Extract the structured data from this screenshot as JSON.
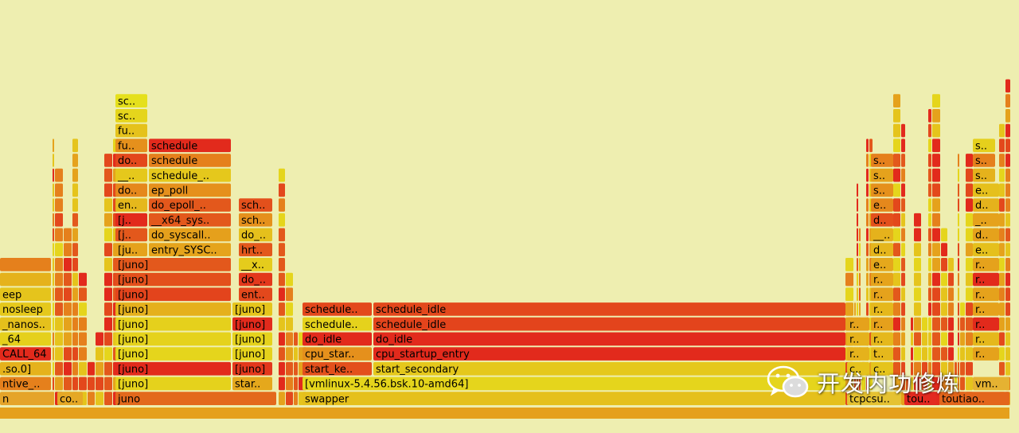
{
  "chart_data": {
    "type": "flamegraph",
    "title": "",
    "frames": [
      {
        "label": "juno",
        "x0": 145,
        "x1": 347,
        "depth": 1,
        "color": "#e3691c"
      },
      {
        "label": "swapper",
        "x0": 380,
        "x1": 1062,
        "depth": 1,
        "color": "#e5c01c"
      },
      {
        "label": "co..",
        "x0": 72,
        "x1": 104,
        "depth": 1,
        "color": "#e5a826"
      },
      {
        "label": "tcpcsu..",
        "x0": 1064,
        "x1": 1132,
        "depth": 1,
        "color": "#e5c232"
      },
      {
        "label": "tou..",
        "x0": 1136,
        "x1": 1176,
        "depth": 1,
        "color": "#e32a20"
      },
      {
        "label": "toutiao..",
        "x0": 1180,
        "x1": 1268,
        "depth": 1,
        "color": "#e3661c"
      },
      {
        "label": "n",
        "x0": 0,
        "x1": 68,
        "depth": 1,
        "color": "#e5a42a"
      },
      {
        "label": "[vmlinux-5.4.56.bsk.10-amd64]",
        "x0": 380,
        "x1": 1062,
        "depth": 2,
        "color": "#e5d51c"
      },
      {
        "label": "[juno]",
        "x0": 145,
        "x1": 290,
        "depth": 2,
        "color": "#e5d21c"
      },
      {
        "label": "star..",
        "x0": 292,
        "x1": 342,
        "depth": 2,
        "color": "#e5a81c"
      },
      {
        "label": "ntive_..",
        "x0": 0,
        "x1": 64,
        "depth": 2,
        "color": "#e5801c"
      },
      {
        "label": "vm..",
        "x0": 1222,
        "x1": 1268,
        "depth": 2,
        "color": "#e5b232"
      },
      {
        "label": "start_ke..",
        "x0": 380,
        "x1": 467,
        "depth": 3,
        "color": "#e3501c"
      },
      {
        "label": "start_secondary",
        "x0": 469,
        "x1": 1062,
        "depth": 3,
        "color": "#e5c81c"
      },
      {
        "label": "[juno]",
        "x0": 145,
        "x1": 290,
        "depth": 3,
        "color": "#e22a1c"
      },
      {
        "label": "[juno]",
        "x0": 292,
        "x1": 342,
        "depth": 3,
        "color": "#e3381c"
      },
      {
        "label": ".so.0]",
        "x0": 0,
        "x1": 64,
        "depth": 3,
        "color": "#e5b21c"
      },
      {
        "label": "c..",
        "x0": 1064,
        "x1": 1092,
        "depth": 3,
        "color": "#e5c21c"
      },
      {
        "label": "c..",
        "x0": 1094,
        "x1": 1122,
        "depth": 3,
        "color": "#e5c41c"
      },
      {
        "label": "cpu_star..",
        "x0": 380,
        "x1": 467,
        "depth": 4,
        "color": "#e5901c"
      },
      {
        "label": "cpu_startup_entry",
        "x0": 469,
        "x1": 1062,
        "depth": 4,
        "color": "#e22a1c"
      },
      {
        "label": "[juno]",
        "x0": 145,
        "x1": 290,
        "depth": 4,
        "color": "#e5d51c"
      },
      {
        "label": "[juno]",
        "x0": 292,
        "x1": 342,
        "depth": 4,
        "color": "#e5d21c"
      },
      {
        "label": "CALL_64",
        "x0": 0,
        "x1": 64,
        "depth": 4,
        "color": "#e22a1c"
      },
      {
        "label": "r..",
        "x0": 1064,
        "x1": 1092,
        "depth": 4,
        "color": "#e5b21c"
      },
      {
        "label": "t..",
        "x0": 1094,
        "x1": 1122,
        "depth": 4,
        "color": "#e5b81c"
      },
      {
        "label": "r..",
        "x0": 1222,
        "x1": 1255,
        "depth": 4,
        "color": "#e5a21c"
      },
      {
        "label": "do_idle",
        "x0": 380,
        "x1": 467,
        "depth": 5,
        "color": "#e22a1c"
      },
      {
        "label": "do_idle",
        "x0": 469,
        "x1": 1062,
        "depth": 5,
        "color": "#e22a1c"
      },
      {
        "label": "[juno]",
        "x0": 145,
        "x1": 290,
        "depth": 5,
        "color": "#e5d21c"
      },
      {
        "label": "[juno]",
        "x0": 292,
        "x1": 342,
        "depth": 5,
        "color": "#e5d21c"
      },
      {
        "label": "_64",
        "x0": 0,
        "x1": 64,
        "depth": 5,
        "color": "#e5d01c"
      },
      {
        "label": "r..",
        "x0": 1064,
        "x1": 1092,
        "depth": 5,
        "color": "#e5b21c"
      },
      {
        "label": "r..",
        "x0": 1094,
        "x1": 1122,
        "depth": 5,
        "color": "#e5b81c"
      },
      {
        "label": "r..",
        "x0": 1222,
        "x1": 1255,
        "depth": 5,
        "color": "#e5b81c"
      },
      {
        "label": "schedule..",
        "x0": 380,
        "x1": 467,
        "depth": 6,
        "color": "#e5d21c"
      },
      {
        "label": "schedule_idle",
        "x0": 469,
        "x1": 1062,
        "depth": 6,
        "color": "#e3441c"
      },
      {
        "label": "[juno]",
        "x0": 145,
        "x1": 290,
        "depth": 6,
        "color": "#e5d01c"
      },
      {
        "label": "[juno]",
        "x0": 292,
        "x1": 342,
        "depth": 6,
        "color": "#e22a1c"
      },
      {
        "label": "_nanos..",
        "x0": 0,
        "x1": 64,
        "depth": 6,
        "color": "#e5c01c"
      },
      {
        "label": "r..",
        "x0": 1064,
        "x1": 1092,
        "depth": 6,
        "color": "#e5a21c"
      },
      {
        "label": "r..",
        "x0": 1094,
        "x1": 1122,
        "depth": 6,
        "color": "#e5a01c"
      },
      {
        "label": "r..",
        "x0": 1222,
        "x1": 1255,
        "depth": 6,
        "color": "#e22a1c"
      },
      {
        "label": "schedule..",
        "x0": 380,
        "x1": 467,
        "depth": 7,
        "color": "#e3481c"
      },
      {
        "label": "schedule_idle",
        "x0": 469,
        "x1": 1062,
        "depth": 7,
        "color": "#e3481c"
      },
      {
        "label": "[juno]",
        "x0": 145,
        "x1": 290,
        "depth": 7,
        "color": "#e5b01c"
      },
      {
        "label": "[juno]",
        "x0": 292,
        "x1": 342,
        "depth": 7,
        "color": "#e5c41c"
      },
      {
        "label": "nosleep",
        "x0": 0,
        "x1": 64,
        "depth": 7,
        "color": "#e5c81c"
      },
      {
        "label": "r..",
        "x0": 1094,
        "x1": 1122,
        "depth": 7,
        "color": "#e5b81c"
      },
      {
        "label": "r..",
        "x0": 1222,
        "x1": 1255,
        "depth": 7,
        "color": "#e5a21c"
      },
      {
        "label": "[juno]",
        "x0": 145,
        "x1": 290,
        "depth": 8,
        "color": "#e3441c"
      },
      {
        "label": "ent..",
        "x0": 300,
        "x1": 342,
        "depth": 8,
        "color": "#e3481c"
      },
      {
        "label": "eep",
        "x0": 0,
        "x1": 64,
        "depth": 8,
        "color": "#e5c41c"
      },
      {
        "label": "r..",
        "x0": 1094,
        "x1": 1122,
        "depth": 8,
        "color": "#e5a21c"
      },
      {
        "label": "r..",
        "x0": 1222,
        "x1": 1255,
        "depth": 8,
        "color": "#e5a21c"
      },
      {
        "label": "[juno]",
        "x0": 145,
        "x1": 290,
        "depth": 9,
        "color": "#e3501c"
      },
      {
        "label": "do_..",
        "x0": 300,
        "x1": 342,
        "depth": 9,
        "color": "#e3381c"
      },
      {
        "label": "",
        "x0": 0,
        "x1": 64,
        "depth": 9,
        "color": "#e5b21c"
      },
      {
        "label": "r..",
        "x0": 1094,
        "x1": 1122,
        "depth": 9,
        "color": "#e5a41c"
      },
      {
        "label": "r..",
        "x0": 1222,
        "x1": 1255,
        "depth": 9,
        "color": "#e22a1c"
      },
      {
        "label": "[juno]",
        "x0": 145,
        "x1": 290,
        "depth": 10,
        "color": "#e3581c"
      },
      {
        "label": "__x..",
        "x0": 300,
        "x1": 342,
        "depth": 10,
        "color": "#e5cc1c"
      },
      {
        "label": "",
        "x0": 0,
        "x1": 64,
        "depth": 10,
        "color": "#e5801c"
      },
      {
        "label": "e..",
        "x0": 1094,
        "x1": 1122,
        "depth": 10,
        "color": "#e5a81c"
      },
      {
        "label": "r..",
        "x0": 1222,
        "x1": 1255,
        "depth": 10,
        "color": "#e5a21c"
      },
      {
        "label": "[ju..",
        "x0": 145,
        "x1": 185,
        "depth": 11,
        "color": "#e5a21c"
      },
      {
        "label": "entry_SYSC..",
        "x0": 187,
        "x1": 290,
        "depth": 11,
        "color": "#e5a41c"
      },
      {
        "label": "hrt..",
        "x0": 300,
        "x1": 342,
        "depth": 11,
        "color": "#e3581c"
      },
      {
        "label": "d..",
        "x0": 1094,
        "x1": 1122,
        "depth": 11,
        "color": "#e5b61c"
      },
      {
        "label": "e..",
        "x0": 1222,
        "x1": 1255,
        "depth": 11,
        "color": "#e5c01c"
      },
      {
        "label": "[j..",
        "x0": 145,
        "x1": 185,
        "depth": 12,
        "color": "#e3581c"
      },
      {
        "label": "do_syscall..",
        "x0": 187,
        "x1": 290,
        "depth": 12,
        "color": "#e5a01c"
      },
      {
        "label": "do_..",
        "x0": 300,
        "x1": 342,
        "depth": 12,
        "color": "#e5c01c"
      },
      {
        "label": "__..",
        "x0": 1094,
        "x1": 1122,
        "depth": 12,
        "color": "#e5b21c"
      },
      {
        "label": "d..",
        "x0": 1222,
        "x1": 1255,
        "depth": 12,
        "color": "#e5a21c"
      },
      {
        "label": "[j..",
        "x0": 145,
        "x1": 185,
        "depth": 13,
        "color": "#e22a1c"
      },
      {
        "label": "__x64_sys..",
        "x0": 187,
        "x1": 290,
        "depth": 13,
        "color": "#e3581c"
      },
      {
        "label": "sch..",
        "x0": 300,
        "x1": 342,
        "depth": 13,
        "color": "#e5901c"
      },
      {
        "label": "d..",
        "x0": 1094,
        "x1": 1122,
        "depth": 13,
        "color": "#e3501c"
      },
      {
        "label": "_..",
        "x0": 1222,
        "x1": 1255,
        "depth": 13,
        "color": "#e5a21c"
      },
      {
        "label": "en..",
        "x0": 145,
        "x1": 185,
        "depth": 14,
        "color": "#e5b81c"
      },
      {
        "label": "do_epoll_..",
        "x0": 187,
        "x1": 290,
        "depth": 14,
        "color": "#e3581c"
      },
      {
        "label": "sch..",
        "x0": 300,
        "x1": 342,
        "depth": 14,
        "color": "#e3501c"
      },
      {
        "label": "e..",
        "x0": 1094,
        "x1": 1122,
        "depth": 14,
        "color": "#e5881c"
      },
      {
        "label": "d..",
        "x0": 1222,
        "x1": 1255,
        "depth": 14,
        "color": "#e5b21c"
      },
      {
        "label": "do..",
        "x0": 145,
        "x1": 185,
        "depth": 15,
        "color": "#e5881c"
      },
      {
        "label": "ep_poll",
        "x0": 187,
        "x1": 290,
        "depth": 15,
        "color": "#e5901c"
      },
      {
        "label": "s..",
        "x0": 1094,
        "x1": 1122,
        "depth": 15,
        "color": "#e5901c"
      },
      {
        "label": "e..",
        "x0": 1222,
        "x1": 1255,
        "depth": 15,
        "color": "#e5c01c"
      },
      {
        "label": "__..",
        "x0": 145,
        "x1": 185,
        "depth": 16,
        "color": "#e5c81c"
      },
      {
        "label": "schedule_..",
        "x0": 187,
        "x1": 290,
        "depth": 16,
        "color": "#e5c81c"
      },
      {
        "label": "s..",
        "x0": 1094,
        "x1": 1122,
        "depth": 16,
        "color": "#e5a21c"
      },
      {
        "label": "s..",
        "x0": 1222,
        "x1": 1250,
        "depth": 16,
        "color": "#e5b21c"
      },
      {
        "label": "do..",
        "x0": 145,
        "x1": 185,
        "depth": 17,
        "color": "#e3481c"
      },
      {
        "label": "schedule",
        "x0": 187,
        "x1": 290,
        "depth": 17,
        "color": "#e5801c"
      },
      {
        "label": "s..",
        "x0": 1094,
        "x1": 1122,
        "depth": 17,
        "color": "#e5801c"
      },
      {
        "label": "s..",
        "x0": 1222,
        "x1": 1250,
        "depth": 17,
        "color": "#e5801c"
      },
      {
        "label": "fu..",
        "x0": 145,
        "x1": 185,
        "depth": 18,
        "color": "#e5901c"
      },
      {
        "label": "schedule",
        "x0": 187,
        "x1": 290,
        "depth": 18,
        "color": "#e22a1c"
      },
      {
        "label": "s..",
        "x0": 1222,
        "x1": 1250,
        "depth": 18,
        "color": "#e5d01c"
      },
      {
        "label": "fu..",
        "x0": 145,
        "x1": 185,
        "depth": 19,
        "color": "#e5c21c"
      },
      {
        "label": "sc..",
        "x0": 145,
        "x1": 185,
        "depth": 20,
        "color": "#e5d51c"
      },
      {
        "label": "sc..",
        "x0": 145,
        "x1": 185,
        "depth": 21,
        "color": "#e5e01c"
      }
    ]
  },
  "watermark": {
    "text": "开发内功修炼",
    "icon": "wechat-icon"
  }
}
